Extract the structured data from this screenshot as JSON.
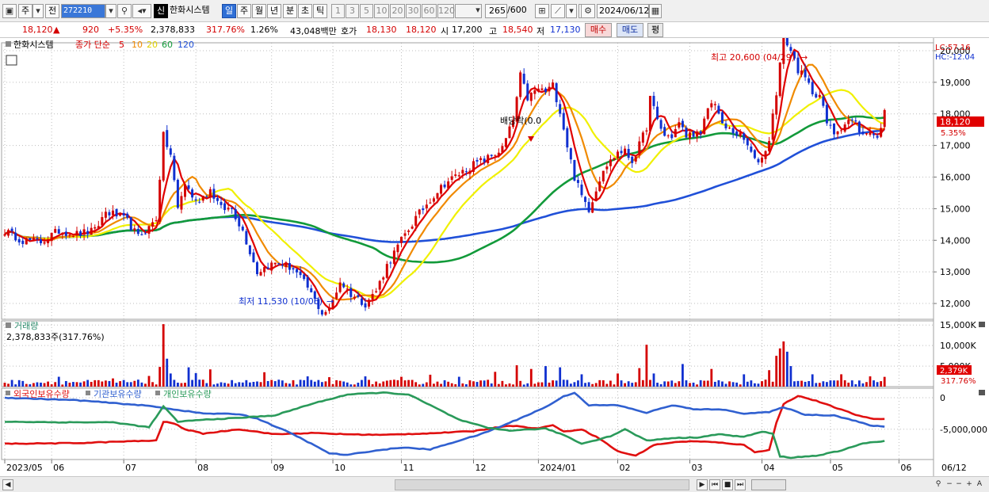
{
  "toolbar": {
    "type_label": "주",
    "prev_label": "전",
    "code": "272210",
    "stock_name": "한화시스템",
    "new_badge": "신",
    "periods": [
      {
        "label": "일",
        "active": true
      },
      {
        "label": "주",
        "active": false
      },
      {
        "label": "월",
        "active": false
      },
      {
        "label": "년",
        "active": false
      },
      {
        "label": "분",
        "active": false
      },
      {
        "label": "초",
        "active": false
      },
      {
        "label": "틱",
        "active": false
      }
    ],
    "intervals": [
      "1",
      "3",
      "5",
      "10",
      "20",
      "30",
      "60",
      "120"
    ],
    "count": "265",
    "count_total": "/600",
    "date": "2024/06/12"
  },
  "quote": {
    "price": "18,120",
    "arrow": "▲",
    "change": "920",
    "change_pct": "+5.35%",
    "volume": "2,378,833",
    "volume_ratio": "317.76%",
    "turnover_pct": "1.26%",
    "amount": "43,048백만",
    "ask_label": "호가",
    "ask": "18,130",
    "bid": "18,120",
    "open_label": "시",
    "open": "17,200",
    "high_label": "고",
    "high": "18,540",
    "low_label": "저",
    "low": "17,130",
    "buy_button": "매수",
    "sell_button": "매도",
    "eval_button": "평"
  },
  "colors": {
    "up": "#d40000",
    "down": "#1030d0",
    "ma5": "#e00000",
    "ma10": "#f08a00",
    "ma20": "#f0f000",
    "ma60": "#129a3a",
    "ma120": "#2050d8",
    "foreign": "#e01010",
    "institution": "#3060d0",
    "individual": "#2a9a5a"
  },
  "chart_data": [
    {
      "type": "line",
      "subtype": "candlestick",
      "legend": {
        "stock": "한화시스템",
        "label": "종가 단순",
        "periods": [
          "5",
          "10",
          "20",
          "60",
          "120"
        ]
      },
      "y_ticks": [
        "20,000",
        "19,000",
        "18,000",
        "17,000",
        "16,000",
        "15,000",
        "14,000",
        "13,000",
        "12,000"
      ],
      "ylim": [
        11500,
        20250
      ],
      "x_labels": [
        "2023/05",
        "06",
        "07",
        "08",
        "09",
        "10",
        "11",
        "12",
        "2024/01",
        "02",
        "03",
        "04",
        "05",
        "06",
        "06/12"
      ],
      "annotations": {
        "high": "최고 20,600 (04/29)",
        "low": "최저 11,530 (10/06)",
        "dividend": "배당락(0.0",
        "lc": "LC:57.16",
        "hc": "HC:-12.04",
        "last_price": "18,120",
        "last_pct": "5.35%"
      },
      "close_keypoints": [
        [
          0,
          14300
        ],
        [
          5,
          14000
        ],
        [
          10,
          13950
        ],
        [
          15,
          14300
        ],
        [
          20,
          14200
        ],
        [
          25,
          14300
        ],
        [
          28,
          14900
        ],
        [
          31,
          14800
        ],
        [
          34,
          14600
        ],
        [
          37,
          14100
        ],
        [
          40,
          14400
        ],
        [
          42,
          14700
        ],
        [
          44,
          17300
        ],
        [
          46,
          16700
        ],
        [
          48,
          15000
        ],
        [
          50,
          15800
        ],
        [
          53,
          15200
        ],
        [
          57,
          15600
        ],
        [
          60,
          15000
        ],
        [
          63,
          15000
        ],
        [
          66,
          14300
        ],
        [
          70,
          13000
        ],
        [
          73,
          13200
        ],
        [
          76,
          13300
        ],
        [
          80,
          13100
        ],
        [
          84,
          12500
        ],
        [
          88,
          11700
        ],
        [
          90,
          11800
        ],
        [
          93,
          12700
        ],
        [
          96,
          12300
        ],
        [
          100,
          12000
        ],
        [
          103,
          12400
        ],
        [
          106,
          13200
        ],
        [
          110,
          14000
        ],
        [
          114,
          14700
        ],
        [
          118,
          15300
        ],
        [
          122,
          15800
        ],
        [
          126,
          16100
        ],
        [
          130,
          16400
        ],
        [
          134,
          16600
        ],
        [
          138,
          16900
        ],
        [
          141,
          17800
        ],
        [
          143,
          19200
        ],
        [
          145,
          18500
        ],
        [
          148,
          18800
        ],
        [
          150,
          18700
        ],
        [
          152,
          18900
        ],
        [
          154,
          18100
        ],
        [
          156,
          17000
        ],
        [
          158,
          16000
        ],
        [
          160,
          15400
        ],
        [
          162,
          15000
        ],
        [
          164,
          15600
        ],
        [
          166,
          16300
        ],
        [
          168,
          16500
        ],
        [
          170,
          16800
        ],
        [
          172,
          16800
        ],
        [
          174,
          16500
        ],
        [
          176,
          17000
        ],
        [
          178,
          17600
        ],
        [
          179,
          18500
        ],
        [
          181,
          17800
        ],
        [
          183,
          17300
        ],
        [
          185,
          17300
        ],
        [
          187,
          17700
        ],
        [
          189,
          17300
        ],
        [
          191,
          17400
        ],
        [
          193,
          17300
        ],
        [
          195,
          18200
        ],
        [
          197,
          18400
        ],
        [
          199,
          17600
        ],
        [
          201,
          17500
        ],
        [
          204,
          17300
        ],
        [
          206,
          17000
        ],
        [
          208,
          16500
        ],
        [
          210,
          16600
        ],
        [
          212,
          17200
        ],
        [
          214,
          18700
        ],
        [
          216,
          20500
        ],
        [
          218,
          20000
        ],
        [
          220,
          19400
        ],
        [
          222,
          19100
        ],
        [
          224,
          18700
        ],
        [
          226,
          18600
        ],
        [
          228,
          17700
        ],
        [
          230,
          17400
        ],
        [
          232,
          17600
        ],
        [
          234,
          17800
        ],
        [
          236,
          17700
        ],
        [
          238,
          17300
        ],
        [
          240,
          17500
        ],
        [
          242,
          17200
        ],
        [
          244,
          18120
        ]
      ]
    },
    {
      "type": "bar",
      "title": "거래량",
      "summary": "2,378,833주(317.76%)",
      "y_ticks": [
        "15,000K",
        "10,000K",
        "5,000K"
      ],
      "ylim": [
        0,
        16000
      ],
      "last_value": "2,379K",
      "last_pct": "317.76%",
      "spikes": [
        [
          15,
          2400
        ],
        [
          30,
          2000
        ],
        [
          40,
          2600
        ],
        [
          43,
          4800
        ],
        [
          44,
          15200
        ],
        [
          45,
          6800
        ],
        [
          46,
          3200
        ],
        [
          51,
          4700
        ],
        [
          53,
          3300
        ],
        [
          57,
          4200
        ],
        [
          72,
          3500
        ],
        [
          84,
          2500
        ],
        [
          90,
          2300
        ],
        [
          100,
          2500
        ],
        [
          110,
          2400
        ],
        [
          118,
          2900
        ],
        [
          126,
          2400
        ],
        [
          136,
          3600
        ],
        [
          142,
          5200
        ],
        [
          146,
          4300
        ],
        [
          150,
          5000
        ],
        [
          154,
          4700
        ],
        [
          160,
          3000
        ],
        [
          170,
          3200
        ],
        [
          176,
          4500
        ],
        [
          178,
          10200
        ],
        [
          180,
          3200
        ],
        [
          188,
          5500
        ],
        [
          196,
          4300
        ],
        [
          205,
          3000
        ],
        [
          212,
          4000
        ],
        [
          214,
          7500
        ],
        [
          215,
          9300
        ],
        [
          216,
          11000
        ],
        [
          217,
          8500
        ],
        [
          218,
          5000
        ],
        [
          224,
          3000
        ],
        [
          232,
          3000
        ],
        [
          240,
          2500
        ],
        [
          244,
          2379
        ]
      ]
    },
    {
      "type": "line",
      "legend": [
        "외국인보유수량",
        "기관보유수량",
        "개인보유수량"
      ],
      "y_ticks": [
        "0",
        "-5,000,000"
      ],
      "ylim": [
        -9800000,
        1500000
      ],
      "series": [
        {
          "name": "외국인보유수량",
          "keypoints": [
            [
              0,
              -7300000
            ],
            [
              20,
              -7200000
            ],
            [
              35,
              -6900000
            ],
            [
              42,
              -6800000
            ],
            [
              44,
              -3800000
            ],
            [
              47,
              -4100000
            ],
            [
              50,
              -5000000
            ],
            [
              55,
              -5700000
            ],
            [
              65,
              -5000000
            ],
            [
              75,
              -5800000
            ],
            [
              85,
              -5600000
            ],
            [
              95,
              -5800000
            ],
            [
              105,
              -5900000
            ],
            [
              120,
              -5600000
            ],
            [
              130,
              -5300000
            ],
            [
              140,
              -4400000
            ],
            [
              148,
              -4900000
            ],
            [
              152,
              -4300000
            ],
            [
              155,
              -5400000
            ],
            [
              160,
              -5000000
            ],
            [
              165,
              -6500000
            ],
            [
              170,
              -8500000
            ],
            [
              175,
              -9200000
            ],
            [
              180,
              -7500000
            ],
            [
              185,
              -7100000
            ],
            [
              190,
              -6900000
            ],
            [
              195,
              -7000000
            ],
            [
              200,
              -7200000
            ],
            [
              205,
              -7500000
            ],
            [
              208,
              -8600000
            ],
            [
              212,
              -8300000
            ],
            [
              214,
              -4000000
            ],
            [
              216,
              -1000000
            ],
            [
              220,
              300000
            ],
            [
              225,
              -500000
            ],
            [
              230,
              -1500000
            ],
            [
              236,
              -2700000
            ],
            [
              240,
              -3300000
            ],
            [
              244,
              -3400000
            ]
          ]
        },
        {
          "name": "기관보유수량",
          "keypoints": [
            [
              0,
              0
            ],
            [
              20,
              -400000
            ],
            [
              40,
              -1300000
            ],
            [
              55,
              -2500000
            ],
            [
              65,
              -2600000
            ],
            [
              70,
              -3300000
            ],
            [
              80,
              -5800000
            ],
            [
              90,
              -8800000
            ],
            [
              95,
              -9100000
            ],
            [
              100,
              -8600000
            ],
            [
              110,
              -7900000
            ],
            [
              118,
              -8200000
            ],
            [
              126,
              -6800000
            ],
            [
              132,
              -5800000
            ],
            [
              140,
              -4000000
            ],
            [
              150,
              -1500000
            ],
            [
              155,
              200000
            ],
            [
              158,
              800000
            ],
            [
              162,
              -1200000
            ],
            [
              170,
              -1200000
            ],
            [
              178,
              -2400000
            ],
            [
              185,
              -1200000
            ],
            [
              192,
              -1900000
            ],
            [
              198,
              -1800000
            ],
            [
              205,
              -2500000
            ],
            [
              212,
              -2300000
            ],
            [
              216,
              -1500000
            ],
            [
              222,
              -2700000
            ],
            [
              230,
              -2800000
            ],
            [
              236,
              -3700000
            ],
            [
              240,
              -4400000
            ],
            [
              244,
              -4600000
            ]
          ]
        },
        {
          "name": "개인보유수량",
          "keypoints": [
            [
              0,
              -3800000
            ],
            [
              15,
              -3900000
            ],
            [
              30,
              -3900000
            ],
            [
              40,
              -4700000
            ],
            [
              44,
              -1400000
            ],
            [
              48,
              -3800000
            ],
            [
              55,
              -3500000
            ],
            [
              65,
              -3200000
            ],
            [
              75,
              -2800000
            ],
            [
              85,
              -1000000
            ],
            [
              95,
              500000
            ],
            [
              105,
              800000
            ],
            [
              112,
              500000
            ],
            [
              118,
              -1200000
            ],
            [
              126,
              -3500000
            ],
            [
              134,
              -4800000
            ],
            [
              140,
              -5200000
            ],
            [
              150,
              -4900000
            ],
            [
              155,
              -5900000
            ],
            [
              160,
              -7300000
            ],
            [
              168,
              -6100000
            ],
            [
              172,
              -5000000
            ],
            [
              178,
              -6800000
            ],
            [
              185,
              -6400000
            ],
            [
              192,
              -6300000
            ],
            [
              198,
              -5800000
            ],
            [
              205,
              -6200000
            ],
            [
              210,
              -5400000
            ],
            [
              213,
              -5700000
            ],
            [
              215,
              -9300000
            ],
            [
              218,
              -9500000
            ],
            [
              225,
              -9200000
            ],
            [
              232,
              -8400000
            ],
            [
              238,
              -7200000
            ],
            [
              244,
              -6900000
            ]
          ]
        }
      ]
    }
  ]
}
